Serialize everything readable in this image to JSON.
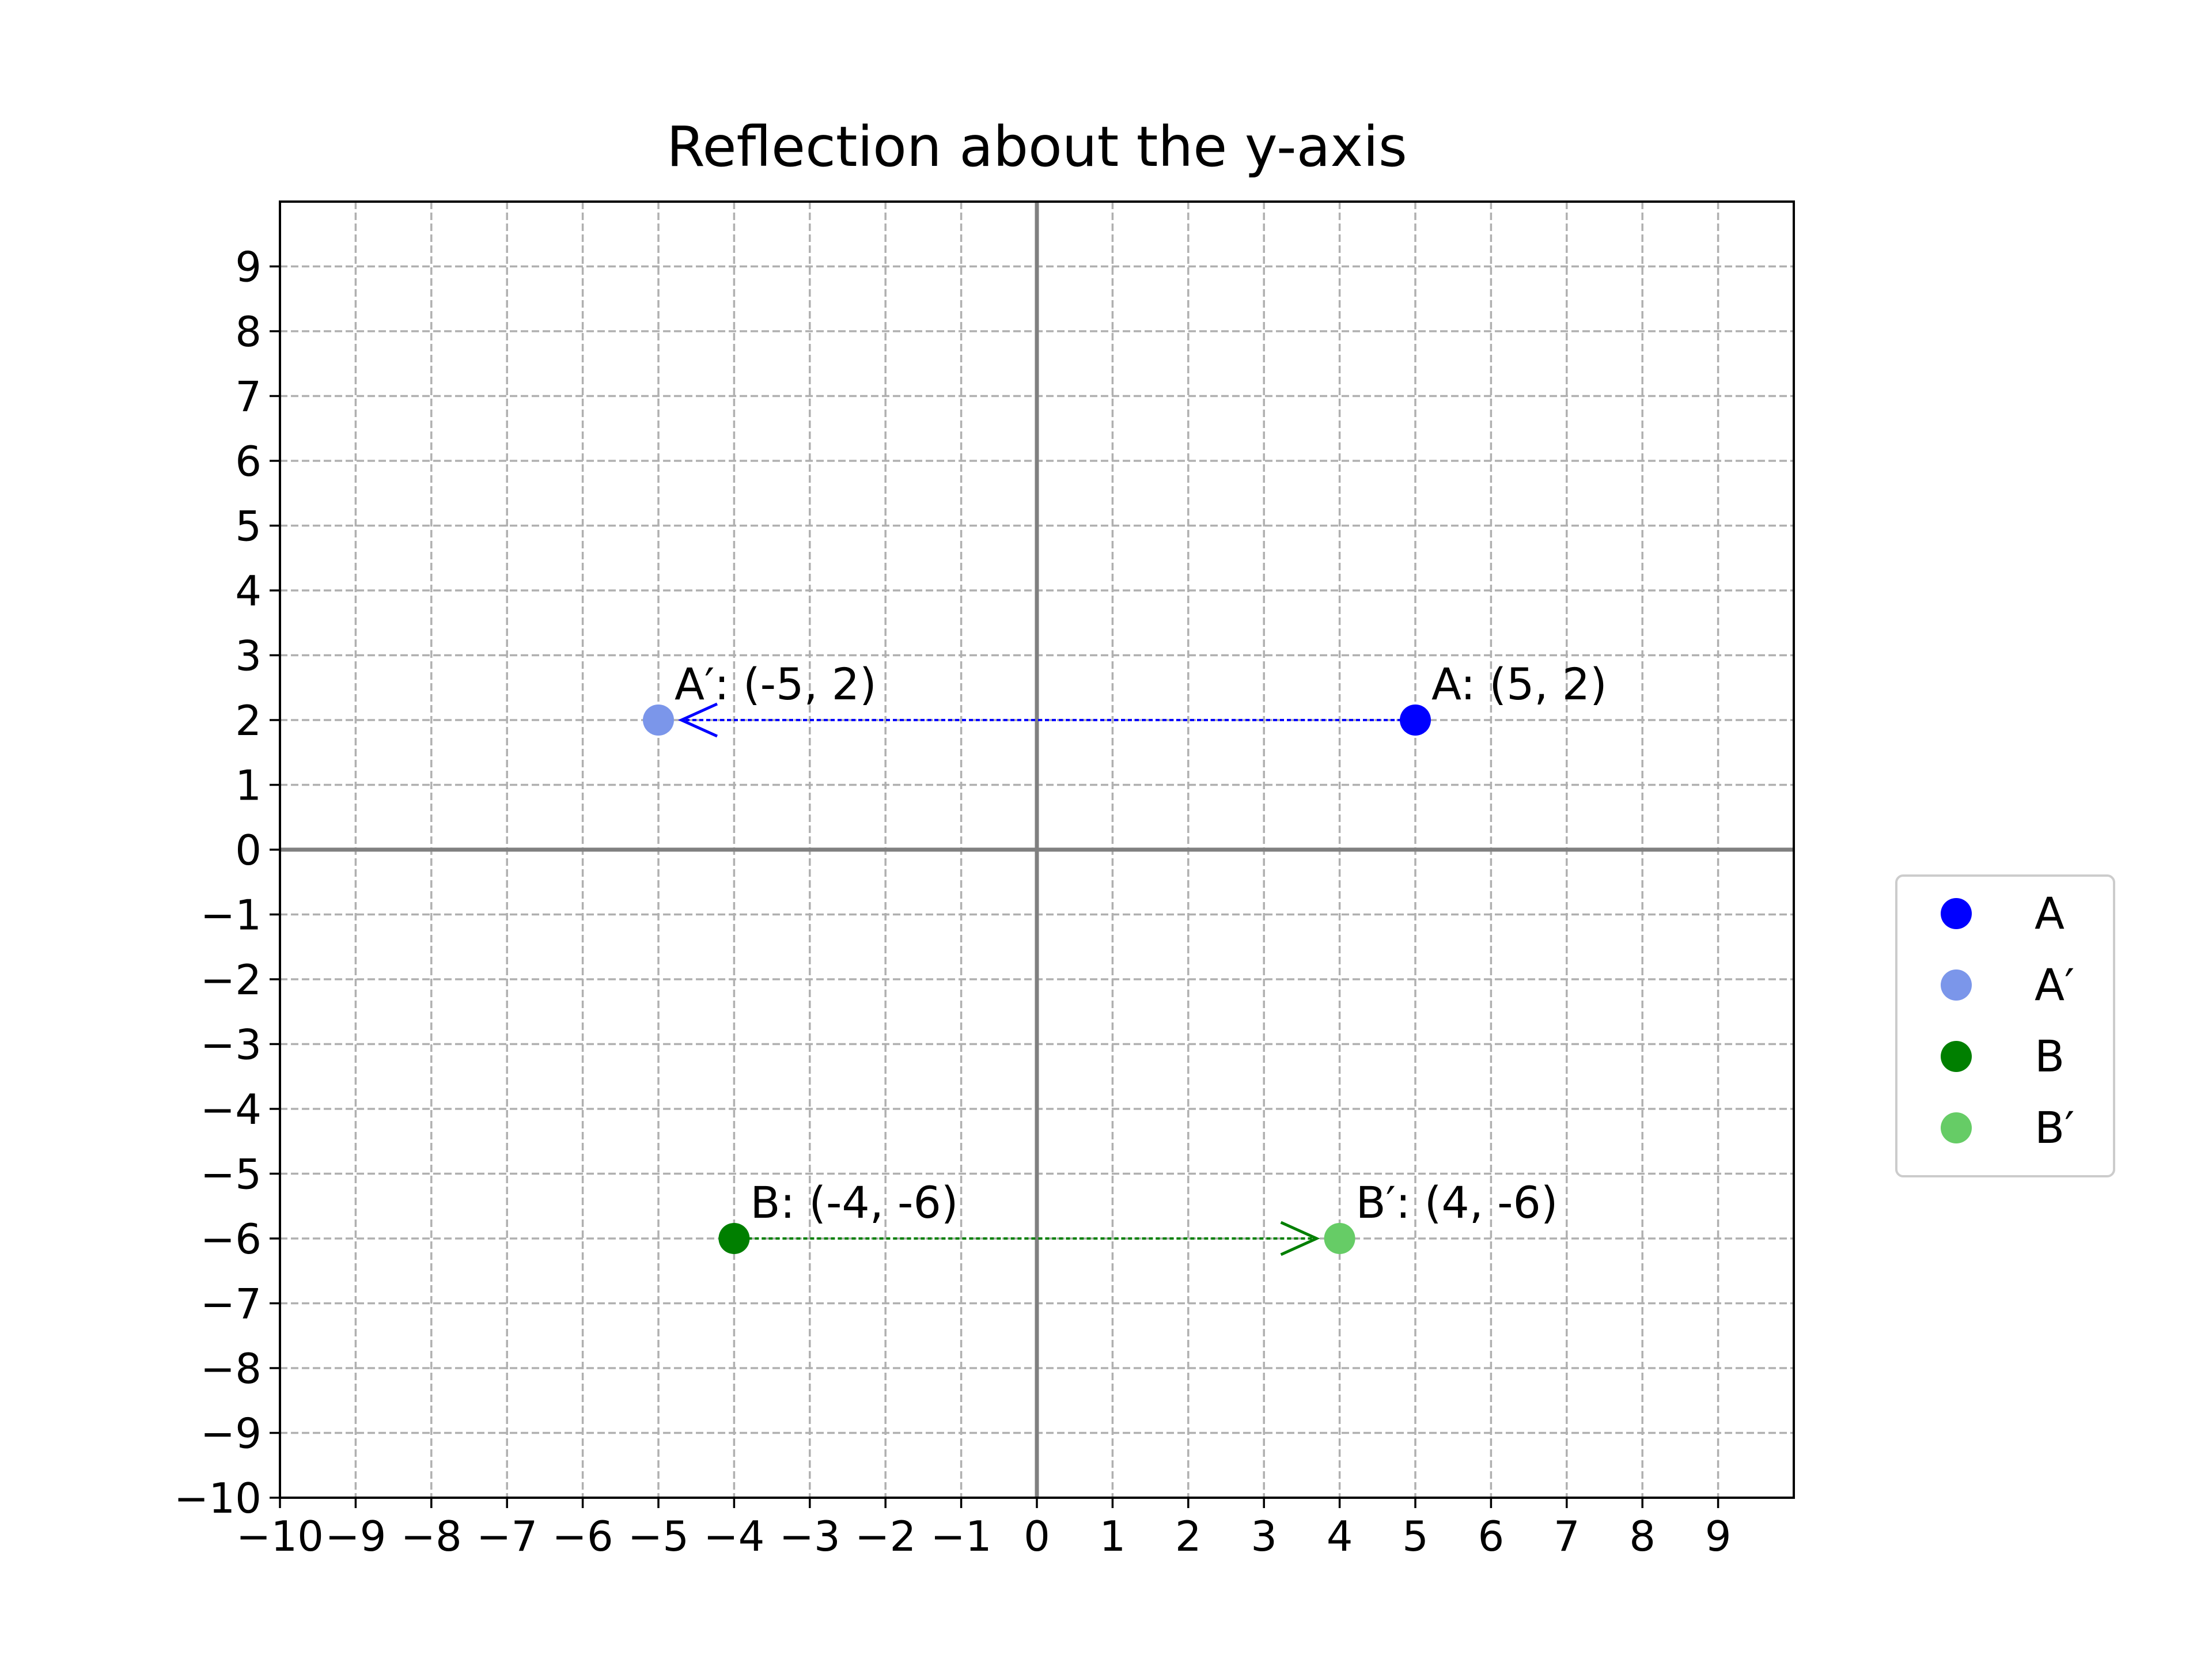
{
  "chart_data": {
    "type": "scatter",
    "title": "Reflection about the y-axis",
    "xlabel": "",
    "ylabel": "",
    "xlim": [
      -10,
      10
    ],
    "ylim": [
      -10,
      10
    ],
    "xticks": [
      -10,
      -9,
      -8,
      -7,
      -6,
      -5,
      -4,
      -3,
      -2,
      -1,
      0,
      1,
      2,
      3,
      4,
      5,
      6,
      7,
      8,
      9
    ],
    "yticks": [
      -10,
      -9,
      -8,
      -7,
      -6,
      -5,
      -4,
      -3,
      -2,
      -1,
      0,
      1,
      2,
      3,
      4,
      5,
      6,
      7,
      8,
      9
    ],
    "grid": true,
    "legend_position": "outside-right",
    "points": [
      {
        "name": "A",
        "x": 5,
        "y": 2,
        "color": "#0000ff",
        "label": "A: (5, 2)"
      },
      {
        "name": "A′",
        "x": -5,
        "y": 2,
        "color": "#7b96ea",
        "label": "A′: (-5, 2)"
      },
      {
        "name": "B",
        "x": -4,
        "y": -6,
        "color": "#007f00",
        "label": "B: (-4, -6)"
      },
      {
        "name": "B′",
        "x": 4,
        "y": -6,
        "color": "#66cc66",
        "label": "B′: (4, -6)"
      }
    ],
    "arrows": [
      {
        "from": [
          5,
          2
        ],
        "to": [
          -5,
          2
        ],
        "color": "#0000ff"
      },
      {
        "from": [
          -4,
          -6
        ],
        "to": [
          4,
          -6
        ],
        "color": "#007f00"
      }
    ],
    "legend": [
      "A",
      "A′",
      "B",
      "B′"
    ]
  }
}
